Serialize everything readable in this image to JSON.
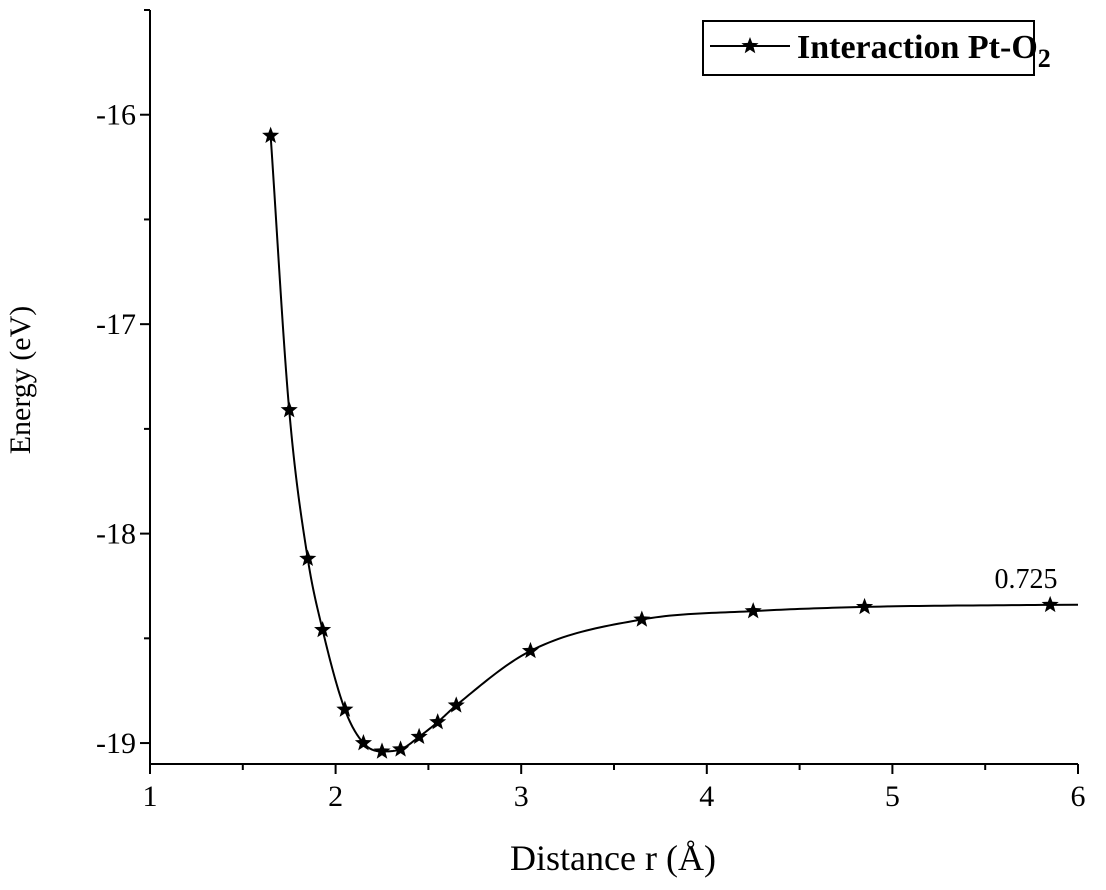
{
  "chart_data": {
    "type": "line",
    "title": "",
    "xlabel": "Distance r (Å)",
    "ylabel": "Energy (eV)",
    "xlim": [
      1,
      6
    ],
    "ylim": [
      -19.1,
      -15.5
    ],
    "xticks": [
      1,
      2,
      3,
      4,
      5,
      6
    ],
    "xtick_labels": [
      "1",
      "2",
      "3",
      "4",
      "5",
      "6"
    ],
    "yticks": [
      -16,
      -17,
      -18,
      -19
    ],
    "ytick_labels": [
      "-16",
      "-17",
      "-18",
      "-19"
    ],
    "grid": false,
    "legend_position": "top-right",
    "legend_label_main": "Interaction Pt-O",
    "legend_label_sub": "2",
    "series": [
      {
        "name": "Interaction Pt-O2",
        "marker": "star",
        "color": "#000000",
        "x": [
          1.65,
          1.75,
          1.85,
          1.93,
          2.05,
          2.15,
          2.25,
          2.35,
          2.45,
          2.55,
          2.65,
          3.05,
          3.65,
          4.25,
          4.85,
          5.85
        ],
        "y": [
          -16.1,
          -17.41,
          -18.12,
          -18.46,
          -18.84,
          -19.0,
          -19.04,
          -19.03,
          -18.97,
          -18.9,
          -18.82,
          -18.56,
          -18.41,
          -18.37,
          -18.35,
          -18.34
        ]
      }
    ],
    "annotations": [
      {
        "text": "0.725",
        "x": 5.72,
        "y": -18.26
      }
    ]
  }
}
